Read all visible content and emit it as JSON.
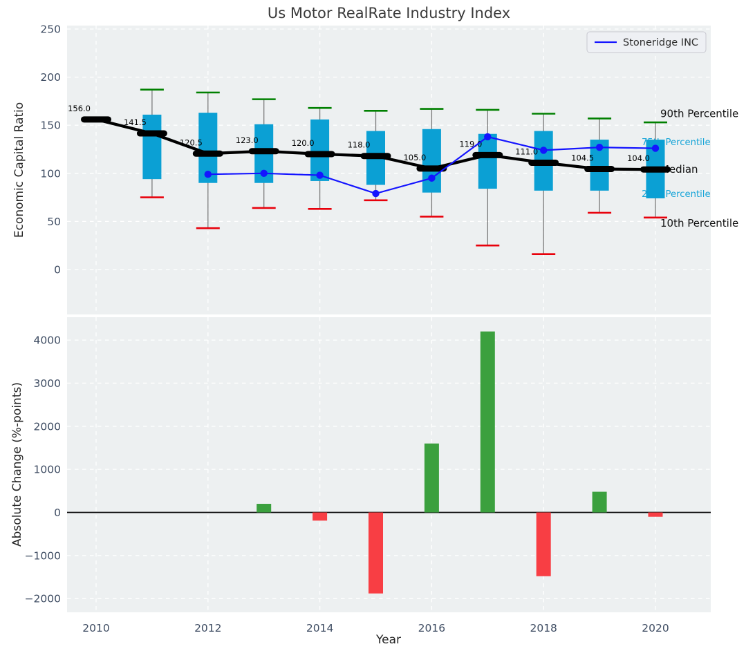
{
  "figure": {
    "title": "Us Motor RealRate Industry Index"
  },
  "colors": {
    "axes_bg": "#edf0f1",
    "grid": "#ffffff",
    "tick": "#3f4d63",
    "title": "#3a3a3a",
    "axis_label": "#262626",
    "box": "#0ba0d4",
    "whisker": "#666666",
    "p90_cap": "#008000",
    "p10_cap": "#e8000b",
    "median": "#000000",
    "line": "#1414ff",
    "bar_up": "#3ba03e",
    "bar_down": "#f83e44",
    "zero_line": "#111111",
    "blue_label": "#18a5d8",
    "legend_bg": "#eef0f4",
    "legend_border": "#c8c8d0"
  },
  "chart_data": [
    {
      "type": "boxplot",
      "title": "Us Motor RealRate Industry Index",
      "ylabel": "Economic Capital Ratio",
      "yticks": [
        0,
        50,
        100,
        150,
        200,
        250
      ],
      "ylim": [
        -47,
        254
      ],
      "grid": true,
      "categories": [
        2010,
        2011,
        2012,
        2013,
        2014,
        2015,
        2016,
        2017,
        2018,
        2019,
        2020
      ],
      "median": [
        156.0,
        141.5,
        120.5,
        123.0,
        120.0,
        118.0,
        105.0,
        119.0,
        111.0,
        104.5,
        104.0
      ],
      "median_labels": [
        "156.0",
        "141.5",
        "120.5",
        "123.0",
        "120.0",
        "118.0",
        "105.0",
        "119.0",
        "111.0",
        "104.5",
        "104.0"
      ],
      "q3": [
        null,
        161,
        163,
        151,
        156,
        144,
        146,
        141,
        144,
        135,
        135
      ],
      "q1": [
        null,
        94,
        90,
        90,
        92,
        88,
        80,
        84,
        82,
        82,
        74
      ],
      "p90": [
        null,
        187,
        184,
        177,
        168,
        165,
        167,
        166,
        162,
        157,
        153
      ],
      "p10": [
        null,
        75,
        43,
        64,
        63,
        72,
        55,
        25,
        16,
        59,
        54
      ],
      "series": [
        {
          "name": "Stoneridge INC",
          "x": [
            2012,
            2013,
            2014,
            2015,
            2016,
            2017,
            2018,
            2019,
            2020
          ],
          "values": [
            99,
            100,
            98,
            79,
            95,
            138,
            124,
            127,
            126
          ]
        }
      ],
      "legend": {
        "label": "Stoneridge INC",
        "position": "upper right"
      },
      "right_labels": [
        {
          "text": "90th Percentile",
          "value": 162,
          "color": "#111111",
          "size": 15
        },
        {
          "text": "75th Percentile",
          "value": 133,
          "color": "#18a5d8",
          "size": 13.2
        },
        {
          "text": "Median",
          "value": 104,
          "color": "#111111",
          "size": 15
        },
        {
          "text": "25th Percentile",
          "value": 79,
          "color": "#18a5d8",
          "size": 13.2
        },
        {
          "text": "10th Percentile",
          "value": 48,
          "color": "#111111",
          "size": 15
        }
      ]
    },
    {
      "type": "bar",
      "xlabel": "Year",
      "ylabel": "Absolute Change (%-points)",
      "yticks": [
        -2000,
        -1000,
        0,
        1000,
        2000,
        3000,
        4000
      ],
      "ylim": [
        -2320,
        4540
      ],
      "grid": true,
      "categories": [
        2010,
        2011,
        2012,
        2013,
        2014,
        2015,
        2016,
        2017,
        2018,
        2019,
        2020
      ],
      "values": [
        null,
        null,
        null,
        200,
        -190,
        -1880,
        1600,
        4200,
        -1480,
        480,
        -100
      ],
      "xticks": [
        2010,
        2012,
        2014,
        2016,
        2018,
        2020
      ]
    }
  ]
}
